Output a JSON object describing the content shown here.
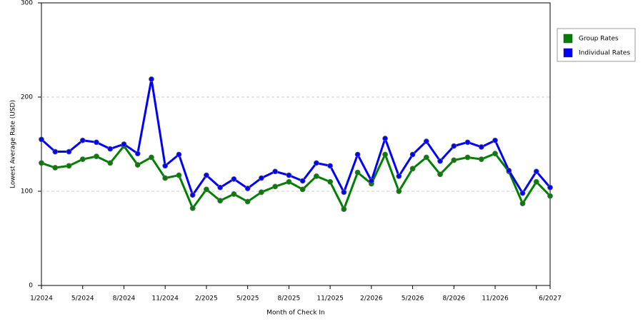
{
  "chart_data": {
    "type": "line",
    "x_label": "Month of Check In",
    "y_label": "Lowest Average Rate (USD)",
    "categories": [
      "1/2024",
      null,
      null,
      "5/2024",
      null,
      null,
      "8/2024",
      null,
      null,
      "11/2024",
      null,
      null,
      "2/2025",
      null,
      null,
      "5/2025",
      null,
      null,
      "8/2025",
      null,
      null,
      "11/2025",
      null,
      null,
      "2/2026",
      null,
      null,
      "5/2026",
      null,
      null,
      "8/2026",
      null,
      null,
      "11/2026",
      null,
      null,
      null,
      "6/2027"
    ],
    "series": [
      {
        "name": "Group Rates",
        "color": "#008000",
        "values": [
          130,
          125,
          127,
          134,
          137,
          130,
          148,
          128,
          136,
          114,
          117,
          82,
          102,
          90,
          97,
          89,
          99,
          105,
          110,
          102,
          116,
          110,
          81,
          120,
          108,
          139,
          100,
          124,
          136,
          118,
          133,
          136,
          134,
          140,
          121,
          87,
          110,
          95
        ]
      },
      {
        "name": "Individual Rates",
        "color": "#0000ff",
        "values": [
          155,
          142,
          142,
          154,
          152,
          145,
          150,
          140,
          219,
          127,
          139,
          96,
          117,
          104,
          113,
          103,
          114,
          121,
          117,
          111,
          130,
          127,
          99,
          139,
          111,
          156,
          116,
          139,
          153,
          132,
          148,
          152,
          147,
          154,
          122,
          98,
          121,
          104
        ]
      }
    ],
    "ylim": [
      0,
      300
    ],
    "yticks": [
      0,
      100,
      200,
      300
    ],
    "grid": true,
    "legend": "right"
  }
}
